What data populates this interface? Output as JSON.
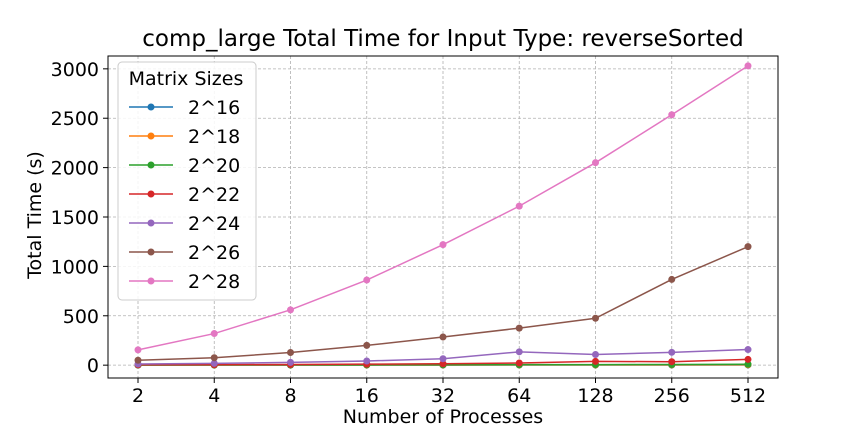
{
  "chart_data": {
    "type": "line",
    "title": "comp_large Total Time for Input Type: reverseSorted",
    "xlabel": "Number of Processes",
    "ylabel": "Total Time (s)",
    "categories": [
      "2",
      "4",
      "8",
      "16",
      "32",
      "64",
      "128",
      "256",
      "512"
    ],
    "yticks": [
      "0",
      "500",
      "1000",
      "1500",
      "2000",
      "2500",
      "3000"
    ],
    "ylim": [
      -130,
      3130
    ],
    "grid": true,
    "legend": {
      "title": "Matrix Sizes",
      "position": "top-left"
    },
    "series": [
      {
        "name": "2^16",
        "color": "#1f77b4",
        "values": [
          0.5,
          0.6,
          0.7,
          0.8,
          0.9,
          1.0,
          1.2,
          1.5,
          2.0
        ]
      },
      {
        "name": "2^18",
        "color": "#ff7f0e",
        "values": [
          1.0,
          1.2,
          1.5,
          1.8,
          2.0,
          2.5,
          3.0,
          3.5,
          4.0
        ]
      },
      {
        "name": "2^20",
        "color": "#2ca02c",
        "values": [
          2.0,
          2.5,
          3.0,
          3.5,
          4.0,
          5.0,
          6.0,
          7.0,
          9.0
        ]
      },
      {
        "name": "2^22",
        "color": "#d62728",
        "values": [
          4.0,
          5.0,
          7.0,
          10.0,
          14.0,
          22.0,
          38.0,
          35.0,
          58.0
        ]
      },
      {
        "name": "2^24",
        "color": "#9467bd",
        "values": [
          12.0,
          18.0,
          28.0,
          42.0,
          65.0,
          135.0,
          108.0,
          130.0,
          158.0
        ]
      },
      {
        "name": "2^26",
        "color": "#8c564b",
        "values": [
          50.0,
          75.0,
          128.0,
          200.0,
          285.0,
          375.0,
          475.0,
          868.0,
          1200.0
        ]
      },
      {
        "name": "2^28",
        "color": "#e377c2",
        "values": [
          155.0,
          320.0,
          560.0,
          862.0,
          1220.0,
          1610.0,
          2050.0,
          2535.0,
          3030.0
        ]
      }
    ]
  }
}
